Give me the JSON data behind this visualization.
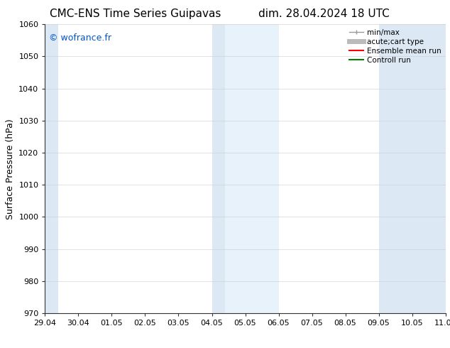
{
  "title": "CMC-ENS Time Series Guipavas",
  "title_right": "dim. 28.04.2024 18 UTC",
  "ylabel": "Surface Pressure (hPa)",
  "ylim": [
    970,
    1060
  ],
  "yticks": [
    970,
    980,
    990,
    1000,
    1010,
    1020,
    1030,
    1040,
    1050,
    1060
  ],
  "xtick_labels": [
    "29.04",
    "30.04",
    "01.05",
    "02.05",
    "03.05",
    "04.05",
    "05.05",
    "06.05",
    "07.05",
    "08.05",
    "09.05",
    "10.05",
    "11.05"
  ],
  "xlim": [
    0,
    12
  ],
  "shaded_regions": [
    {
      "xmin": 0,
      "xmax": 0.4,
      "color": "#dce9f5"
    },
    {
      "xmin": 5,
      "xmax": 5.4,
      "color": "#dce9f5"
    },
    {
      "xmin": 5.4,
      "xmax": 7.0,
      "color": "#e8f2fa"
    },
    {
      "xmin": 10,
      "xmax": 12,
      "color": "#dce9f5"
    }
  ],
  "watermark_text": "© wofrance.fr",
  "watermark_color": "#0055cc",
  "background_color": "#ffffff",
  "legend_entries": [
    {
      "label": "min/max",
      "color": "#999999",
      "lw": 1.0,
      "linestyle": "-"
    },
    {
      "label": "acute;cart type",
      "color": "#bbbbbb",
      "lw": 5,
      "linestyle": "-"
    },
    {
      "label": "Ensemble mean run",
      "color": "#ff0000",
      "lw": 1.5,
      "linestyle": "-"
    },
    {
      "label": "Controll run",
      "color": "#008000",
      "lw": 1.5,
      "linestyle": "-"
    }
  ],
  "grid_color": "#cccccc",
  "title_fontsize": 11,
  "axis_label_fontsize": 9,
  "tick_fontsize": 8,
  "watermark_fontsize": 9
}
